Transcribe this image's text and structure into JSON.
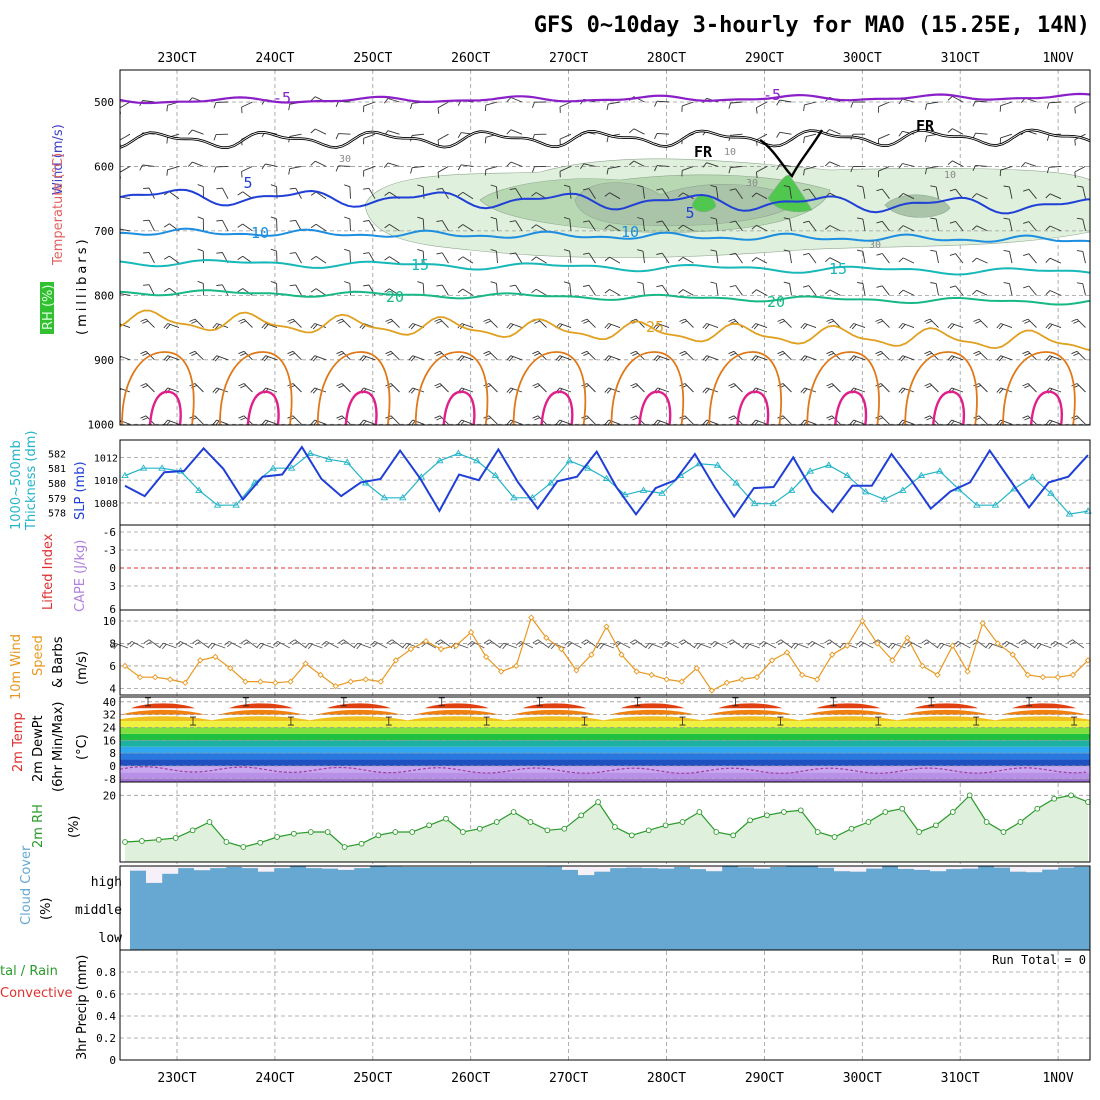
{
  "title": "GFS 0~10day 3-hourly for MAO (15.25E, 14N)",
  "dates": [
    "23OCT",
    "24OCT",
    "25OCT",
    "26OCT",
    "27OCT",
    "28OCT",
    "29OCT",
    "30OCT",
    "31OCT",
    "1NOV"
  ],
  "colors": {
    "purple": "#8a1fc8",
    "black": "#000000",
    "blue": "#1f3fd6",
    "lightblue": "#1d8ee0",
    "teal": "#17b8b8",
    "green": "#18b886",
    "gold": "#e0a020",
    "orange": "#e07818",
    "magenta": "#e0208a",
    "rh_light": "#dff0dc",
    "rh_mid": "#b8d8b4",
    "rh_dark": "#50c850",
    "slp": "#1f3fd6",
    "thickness": "#23b5c8",
    "wind10": "#e89820",
    "rh2m": "#2a9a2a",
    "cloud": "#66a8d2",
    "cloud_gap": "#f6f0f8"
  },
  "sections": {
    "upper": {
      "ylabels": [
        "500",
        "600",
        "700",
        "800",
        "900",
        "1000"
      ],
      "side_labels": {
        "wind": "Wind (m/s)",
        "temp": "Temperature (°C)",
        "rh": "RH (%)",
        "mb": "(millibars)"
      },
      "contour_labels": [
        "-5",
        "-5",
        "FR",
        "FR",
        "5",
        "5",
        "10",
        "10",
        "15",
        "15",
        "20",
        "20",
        "25",
        "10",
        "10",
        "30",
        "30",
        "30"
      ]
    },
    "slp": {
      "side_labels": {
        "thick": "1000~500mb",
        "thick2": "Thickness (dm)",
        "slp": "SLP (mb)"
      },
      "left_ticks": [
        "582",
        "581",
        "580",
        "579",
        "578"
      ],
      "right_ticks": [
        "1012",
        "1010",
        "1008"
      ]
    },
    "li": {
      "side_labels": {
        "li": "Lifted Index",
        "cape": "CAPE (J/kg)"
      },
      "ticks": [
        "-6",
        "-3",
        "0",
        "3",
        "6"
      ]
    },
    "wind10": {
      "side_labels": {
        "l1": "10m Wind",
        "l2": "Speed",
        "l3": "& Barbs",
        "unit": "(m/s)"
      },
      "ticks": [
        "10",
        "8",
        "6",
        "4"
      ]
    },
    "temp": {
      "side_labels": {
        "l1": "2m Temp",
        "l2": "2m DewPt",
        "l3": "(6hr Min/Max)",
        "unit": "(°C)"
      },
      "ticks": [
        "40",
        "32",
        "24",
        "16",
        "8",
        "0",
        "-8"
      ]
    },
    "rh": {
      "side_labels": {
        "l1": "2m RH",
        "unit": "(%)"
      },
      "ticks": [
        "20"
      ]
    },
    "cloud": {
      "side_labels": {
        "l1": "Cloud Cover",
        "unit": "(%)"
      },
      "levels": [
        "high",
        "middle",
        "low"
      ]
    },
    "precip": {
      "side_labels": {
        "l1": "tal / Rain",
        "l2": "Convective",
        "l3": "3hr Precip (mm)"
      },
      "ticks": [
        "0.8",
        "0.6",
        "0.4",
        "0.2",
        "0"
      ],
      "run_total": "Run Total = 0"
    }
  },
  "chart_data": {
    "type": "line",
    "title": "GFS 0~10day 3-hourly for MAO (15.25E, 14N)",
    "x_range_days": [
      0,
      10
    ],
    "x_ticks": [
      "23OCT",
      "24OCT",
      "25OCT",
      "26OCT",
      "27OCT",
      "28OCT",
      "29OCT",
      "30OCT",
      "31OCT",
      "1NOV"
    ],
    "slp_mb": {
      "ylim": [
        1006.5,
        1013
      ],
      "values": [
        1009.5,
        1008.6,
        1010.7,
        1010.8,
        1012.8,
        1011.0,
        1008.3,
        1010.3,
        1010.5,
        1012.9,
        1010.1,
        1008.6,
        1009.8,
        1010.1,
        1012.6,
        1010.2,
        1007.3,
        1010.5,
        1010.0,
        1012.7,
        1009.8,
        1007.5,
        1009.9,
        1010.3,
        1012.5,
        1009.4,
        1007.0,
        1009.3,
        1010.0,
        1012.3,
        1009.4,
        1006.8,
        1009.3,
        1009.4,
        1012.0,
        1009.0,
        1007.2,
        1009.5,
        1009.5,
        1012.3,
        1010.0,
        1007.5,
        1009.0,
        1009.8,
        1012.6,
        1010.1,
        1007.6,
        1009.8,
        1010.3,
        1012.2
      ]
    },
    "thickness_dm": {
      "ylim": [
        577.5,
        582.5
      ],
      "values": [
        580.5,
        581.0,
        581.0,
        580.8,
        579.5,
        578.5,
        578.5,
        580.0,
        581.0,
        581.0,
        582.0,
        581.6,
        581.4,
        580.0,
        579.0,
        579.0,
        580.4,
        581.5,
        582.0,
        581.5,
        580.5,
        579.0,
        579.0,
        580.0,
        581.5,
        581.0,
        580.3,
        579.2,
        579.5,
        579.3,
        580.5,
        581.3,
        581.2,
        580.0,
        578.6,
        578.6,
        579.5,
        580.8,
        581.2,
        580.5,
        579.4,
        578.9,
        579.5,
        580.5,
        580.8,
        579.6,
        578.5,
        578.5,
        579.6,
        580.4,
        579.3,
        577.9,
        578.1
      ]
    },
    "wind10m_ms": {
      "ylim": [
        3.5,
        10.8
      ],
      "values": [
        6.0,
        5.0,
        5.0,
        4.8,
        4.5,
        6.5,
        6.8,
        5.8,
        4.6,
        4.6,
        4.5,
        4.6,
        6.2,
        5.2,
        4.2,
        4.6,
        4.8,
        4.6,
        6.5,
        7.5,
        8.2,
        7.5,
        7.8,
        9.0,
        6.8,
        5.5,
        6.0,
        10.3,
        8.5,
        7.5,
        5.6,
        7.0,
        9.5,
        7.0,
        5.5,
        5.2,
        4.8,
        4.6,
        5.8,
        3.8,
        4.5,
        4.8,
        5.0,
        6.5,
        7.2,
        5.2,
        4.8,
        7.0,
        7.8,
        10.0,
        8.0,
        6.5,
        8.5,
        6.0,
        5.2,
        7.8,
        5.5,
        9.8,
        8.0,
        7.0,
        5.2,
        5.0,
        5.0,
        5.2,
        6.5
      ]
    },
    "temp2m_c": {
      "ylim": [
        -10,
        43
      ],
      "max_daily": 40,
      "min_daily": 26,
      "dewpt_range": [
        -4,
        0
      ]
    },
    "rh2m_pct": {
      "ylim": [
        0,
        24
      ],
      "values": [
        6.0,
        6.3,
        6.7,
        7.2,
        9.5,
        12.0,
        6.0,
        4.5,
        5.8,
        7.5,
        8.5,
        9.0,
        9.0,
        4.5,
        5.5,
        8.0,
        9.0,
        9.0,
        11.0,
        13.0,
        9.0,
        10.0,
        12.0,
        15.0,
        12.0,
        9.5,
        10.0,
        14.0,
        18.0,
        10.5,
        8.0,
        9.5,
        11.0,
        12.0,
        15.0,
        9.0,
        8.0,
        12.5,
        14.0,
        15.0,
        15.5,
        9.0,
        7.5,
        10.0,
        12.0,
        15.0,
        16.0,
        9.0,
        11.0,
        15.0,
        20.0,
        12.0,
        9.0,
        12.0,
        16.0,
        19.0,
        20.0,
        18.0
      ]
    },
    "cloud_high_pct": [
      82,
      35,
      70,
      92,
      84,
      92,
      96,
      92,
      78,
      92,
      99,
      92,
      90,
      85,
      92,
      100,
      97,
      96,
      96,
      96,
      96,
      96,
      96,
      96,
      96,
      96,
      97,
      85,
      65,
      78,
      92,
      94,
      92,
      90,
      96,
      88,
      80,
      99,
      95,
      90,
      96,
      99,
      98,
      93,
      80,
      78,
      90,
      99,
      89,
      85,
      80,
      88,
      90,
      99,
      94,
      78,
      76,
      86,
      94,
      97
    ],
    "precip_mm": {
      "ylim": [
        0,
        1
      ],
      "values": []
    }
  }
}
